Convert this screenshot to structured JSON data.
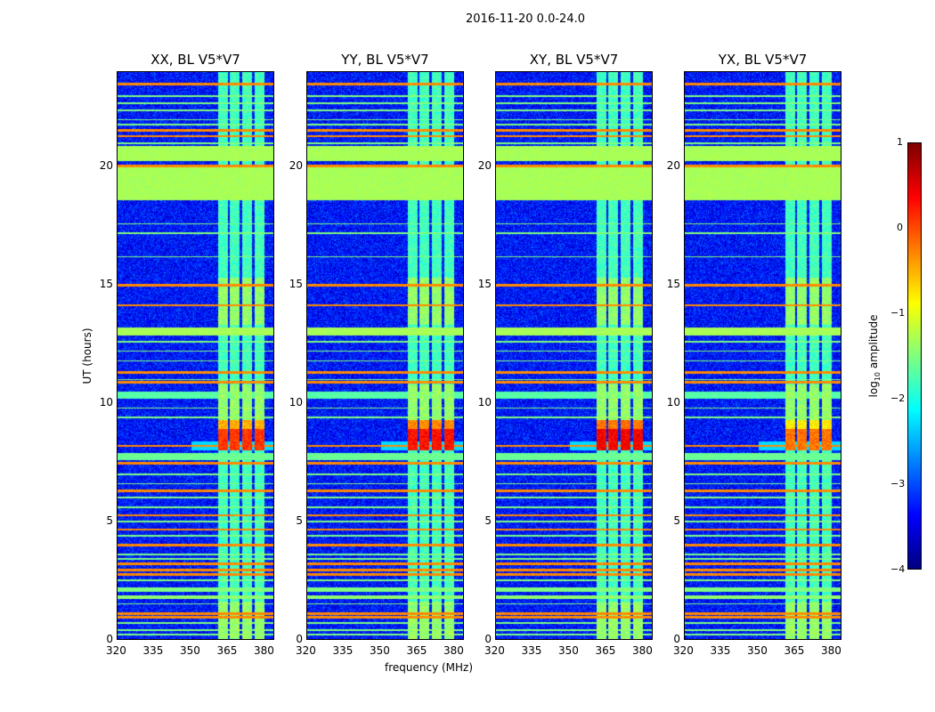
{
  "chart_data": {
    "type": "heatmap",
    "title": "2016-11-20 0.0-24.0",
    "xlabel": "frequency (MHz)",
    "ylabel": "UT (hours)",
    "xlim": [
      320,
      384
    ],
    "ylim": [
      0,
      24
    ],
    "xticks": [
      320,
      335,
      350,
      365,
      380
    ],
    "yticks": [
      0,
      5,
      10,
      15,
      20
    ],
    "colorbar": {
      "label": "log10 amplitude",
      "label_main": "log",
      "label_sub": "10",
      "label_rest": " amplitude",
      "range": [
        -4,
        1
      ],
      "ticks": [
        "1",
        "0",
        "−1",
        "−2",
        "−3",
        "−4"
      ],
      "tick_values": [
        1,
        0,
        -1,
        -2,
        -3,
        -4
      ],
      "colormap": "jet"
    },
    "panels": [
      {
        "title": "XX, BL V5*V7",
        "burst": 0.1
      },
      {
        "title": "YY, BL V5*V7",
        "burst": 0.3
      },
      {
        "title": "XY, BL V5*V7",
        "burst": 0.4
      },
      {
        "title": "YX, BL V5*V7",
        "burst": -0.2
      }
    ],
    "background_level": -3.3,
    "broad_bands": [
      {
        "from": 18.6,
        "to": 20.0,
        "value": -1.3
      },
      {
        "from": 20.25,
        "to": 20.9,
        "value": -1.3
      },
      {
        "from": 12.85,
        "to": 13.2,
        "value": -1.3
      },
      {
        "from": 10.2,
        "to": 10.5,
        "value": -1.7
      },
      {
        "from": 7.6,
        "to": 7.9,
        "value": -1.6
      },
      {
        "from": 2.0,
        "to": 2.2,
        "value": -1.5
      },
      {
        "from": 1.7,
        "to": 1.85,
        "value": -1.4
      }
    ],
    "rfi_lines_hours": [
      23.5,
      21.55,
      21.3,
      20.05,
      15.0,
      14.15,
      11.3,
      10.9,
      8.2,
      7.45,
      6.3,
      5.25,
      4.65,
      4.0,
      3.2,
      2.95,
      2.75,
      1.1,
      0.95
    ],
    "rfi_line_value": -0.3,
    "weak_lines_hours": [
      23.0,
      22.7,
      22.4,
      22.0,
      21.8,
      21.0,
      17.6,
      17.2,
      16.2,
      12.6,
      12.2,
      11.8,
      11.0,
      9.8,
      9.4,
      7.0,
      6.6,
      6.0,
      5.6,
      5.0,
      4.4,
      3.6,
      3.4,
      2.5,
      1.5,
      0.7,
      0.4,
      0.2
    ],
    "channel_blocks_mhz": [
      [
        361,
        365
      ],
      [
        366,
        370
      ],
      [
        371,
        375
      ],
      [
        376,
        380
      ]
    ],
    "channel_block_value": -1.8,
    "burst_hours": [
      8.0,
      9.3
    ]
  }
}
